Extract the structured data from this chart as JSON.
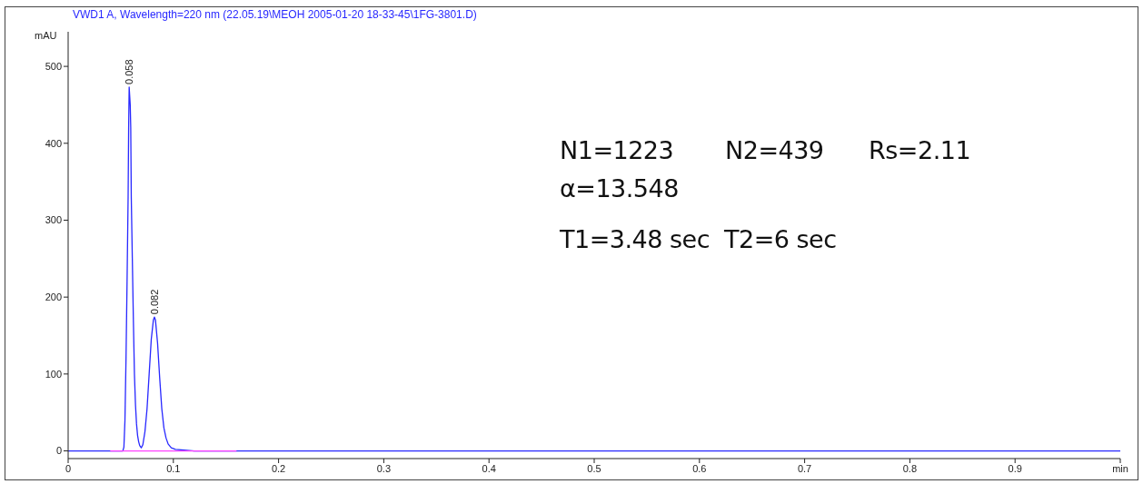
{
  "chart_data": {
    "type": "line",
    "title": "VWD1 A, Wavelength=220 nm (22.05.19\\MEOH 2005-01-20 18-33-45\\1FG-3801.D)",
    "ylabel": "mAU",
    "series": [
      {
        "color": "#2828ff",
        "x": [
          0,
          0.04,
          0.052,
          0.053,
          0.054,
          0.055,
          0.056,
          0.057,
          0.0575,
          0.058,
          0.059,
          0.0595,
          0.06,
          0.061,
          0.062,
          0.063,
          0.064,
          0.065,
          0.066,
          0.067,
          0.068,
          0.0695,
          0.071,
          0.073,
          0.075,
          0.077,
          0.079,
          0.081,
          0.082,
          0.083,
          0.085,
          0.087,
          0.089,
          0.091,
          0.093,
          0.095,
          0.098,
          0.102,
          0.11,
          0.12,
          1.0
        ],
        "values": [
          0,
          0,
          0,
          5,
          40,
          120,
          220,
          330,
          420,
          473,
          450,
          420,
          330,
          250,
          170,
          100,
          60,
          35,
          20,
          12,
          7,
          4,
          8,
          25,
          55,
          100,
          145,
          170,
          174,
          170,
          140,
          95,
          55,
          30,
          17,
          9,
          4,
          2,
          1,
          0,
          0
        ]
      },
      {
        "color": "#ff40ff",
        "x": [
          0.04,
          0.16
        ],
        "values": [
          0,
          0
        ]
      }
    ],
    "xlim": [
      0,
      1
    ],
    "xticks": [
      0,
      0.1,
      0.2,
      0.3,
      0.4,
      0.5,
      0.6,
      0.7,
      0.8,
      0.9,
      {
        "value": 1,
        "label": "min"
      }
    ],
    "ylim": [
      -10,
      545
    ],
    "yticks": [
      0,
      100,
      200,
      300,
      400,
      500
    ],
    "grid": false,
    "marker": "none",
    "line_style": "solid",
    "annotations": [
      {
        "text": "0.058",
        "x": 0.058,
        "y": 473
      },
      {
        "text": "0.082",
        "x": 0.082,
        "y": 174
      },
      "N1=1223",
      "N2=439",
      "Rs=2.11",
      "α=13.548",
      "T1=3.48 sec",
      "T2=6 sec"
    ]
  }
}
